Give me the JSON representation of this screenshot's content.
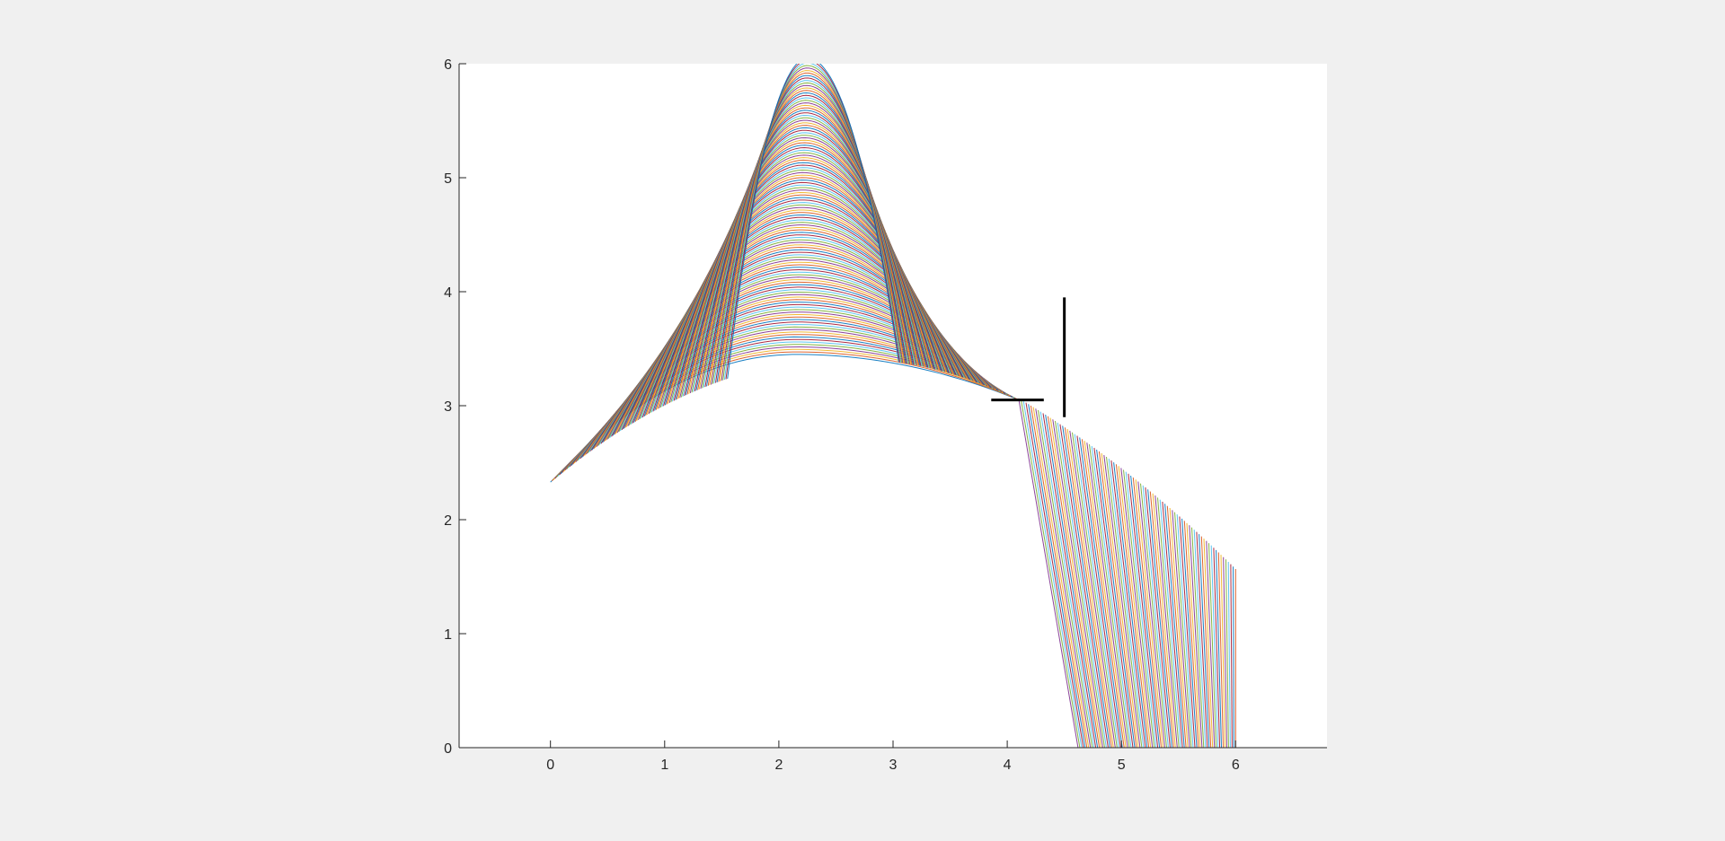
{
  "window": {
    "background": "#f0f0f0"
  },
  "chart_data": {
    "type": "line",
    "title": "",
    "xlabel": "",
    "ylabel": "",
    "xlim": [
      -0.8,
      6.8
    ],
    "ylim": [
      0,
      6
    ],
    "xticks": [
      0,
      1,
      2,
      3,
      4,
      5,
      6
    ],
    "yticks": [
      0,
      1,
      2,
      3,
      4,
      5,
      6
    ],
    "grid": false,
    "legend": "none",
    "series_colors": [
      "#0072bd",
      "#d95319",
      "#edb120",
      "#7e2f8e",
      "#77ac30",
      "#4dbeee",
      "#a2142f"
    ],
    "family_a": {
      "description_free": true,
      "x_range": [
        0,
        4.1
      ],
      "apex_x": 2.2,
      "bottom_curve": {
        "x": [
          0,
          1,
          2,
          2.6,
          3,
          4.1
        ],
        "y": [
          2.32,
          3.02,
          3.36,
          3.41,
          3.37,
          3.06
        ]
      },
      "count": 120
    },
    "family_b": {
      "x_range": [
        4.1,
        6
      ],
      "top_curve": {
        "x": [
          4.1,
          4.5,
          5,
          5.5,
          6
        ],
        "y": [
          3.06,
          2.82,
          2.45,
          2.03,
          1.57
        ]
      },
      "left_edge_bottom_x": 4.62,
      "count": 90
    },
    "annotations": [
      {
        "type": "hline",
        "x": [
          3.86,
          4.32
        ],
        "y": 3.05
      },
      {
        "type": "vline",
        "x": 4.5,
        "y": [
          2.9,
          3.95
        ]
      }
    ]
  }
}
